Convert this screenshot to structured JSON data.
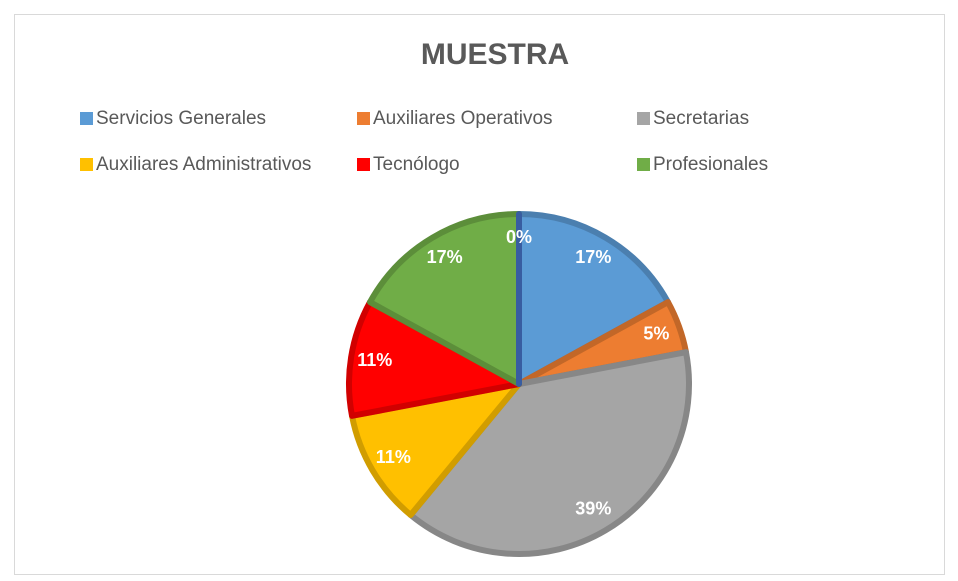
{
  "chart_data": {
    "type": "pie",
    "title": "MUESTRA",
    "categories": [
      "Servicios Generales",
      "Auxiliares Operativos",
      "Secretarias",
      "Auxiliares Administrativos",
      "Tecnólogo",
      "Profesionales",
      null
    ],
    "values": [
      17,
      5,
      39,
      11,
      11,
      17,
      0
    ],
    "value_labels": [
      "17%",
      "5%",
      "39%",
      "11%",
      "11%",
      "17%",
      "0%"
    ],
    "colors": [
      "#5b9bd5",
      "#ed7d31",
      "#a5a5a5",
      "#ffc000",
      "#ff0000",
      "#70ad47",
      "#4472c4"
    ],
    "legend": "top"
  }
}
